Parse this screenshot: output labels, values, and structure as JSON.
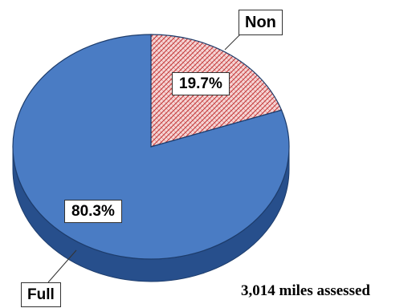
{
  "chart_data": {
    "type": "pie",
    "slices": [
      {
        "name": "Full",
        "value": 80.3,
        "label": "80.3%",
        "color": "#4a7cc4",
        "side_color": "#274f8c"
      },
      {
        "name": "Non",
        "value": 19.7,
        "label": "19.7%",
        "color": "#f2c6c6",
        "hatch_color": "#c43a3a",
        "side_color": "#a83030"
      }
    ],
    "annotation": "3,014 miles assessed",
    "style": "3d"
  }
}
